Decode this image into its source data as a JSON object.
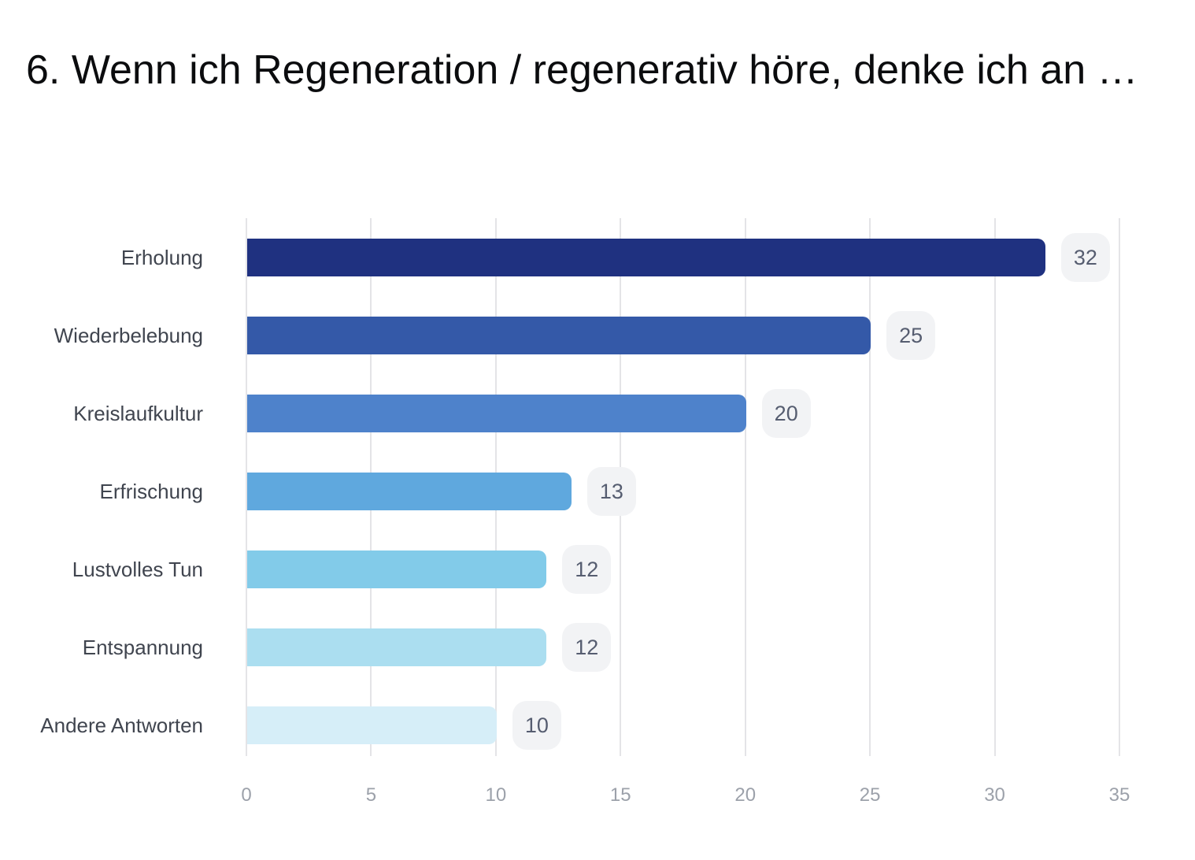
{
  "title": "6. Wenn ich Regeneration / regenerativ höre, denke ich an …",
  "chart_data": {
    "type": "bar",
    "orientation": "horizontal",
    "title": "6. Wenn ich Regeneration / regenerativ höre, denke ich an …",
    "categories": [
      "Erholung",
      "Wiederbelebung",
      "Kreislaufkultur",
      "Erfrischung",
      "Lustvolles Tun",
      "Entspannung",
      "Andere Antworten"
    ],
    "values": [
      32,
      25,
      20,
      13,
      12,
      12,
      10
    ],
    "value_labels": [
      "32",
      "25",
      "20",
      "13",
      "12",
      "12",
      "10"
    ],
    "xlabel": "",
    "ylabel": "",
    "xlim": [
      0,
      35
    ],
    "xticks": [
      0,
      5,
      10,
      15,
      20,
      25,
      30,
      35
    ],
    "grid": "vertical",
    "legend": false,
    "bar_colors": [
      "#1f3180",
      "#3459a8",
      "#4e82cb",
      "#5fa8de",
      "#82cbe9",
      "#abdef0",
      "#d6eef8"
    ]
  },
  "style": {
    "background": "#ffffff",
    "title_color": "#0b0c0e",
    "category_label_color": "#40454f",
    "tick_label_color": "#9ca1aa",
    "gridline_color": "#e4e4e7",
    "badge_background": "#f2f3f5",
    "badge_text_color": "#565d70"
  }
}
